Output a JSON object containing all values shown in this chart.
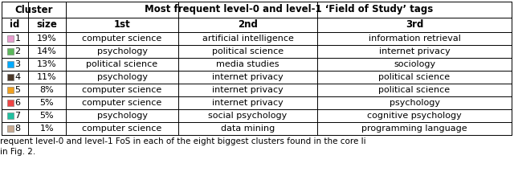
{
  "title_row1": "Most frequent level-0 and level-1 ‘Field of Study’ tags",
  "cluster_header": "Cluster",
  "rows": [
    {
      "id": "1",
      "size": "19%",
      "color": "#e89cce",
      "1st": "computer science",
      "2nd": "artificial intelligence",
      "3rd": "information retrieval"
    },
    {
      "id": "2",
      "size": "14%",
      "color": "#5cb85c",
      "1st": "psychology",
      "2nd": "political science",
      "3rd": "internet privacy"
    },
    {
      "id": "3",
      "size": "13%",
      "color": "#00aaff",
      "1st": "political science",
      "2nd": "media studies",
      "3rd": "sociology"
    },
    {
      "id": "4",
      "size": "11%",
      "color": "#4a3728",
      "1st": "psychology",
      "2nd": "internet privacy",
      "3rd": "political science"
    },
    {
      "id": "5",
      "size": "8%",
      "color": "#f0a020",
      "1st": "computer science",
      "2nd": "internet privacy",
      "3rd": "political science"
    },
    {
      "id": "6",
      "size": "5%",
      "color": "#ee4444",
      "1st": "computer science",
      "2nd": "internet privacy",
      "3rd": "psychology"
    },
    {
      "id": "7",
      "size": "5%",
      "color": "#20c0a0",
      "1st": "psychology",
      "2nd": "social psychology",
      "3rd": "cognitive psychology"
    },
    {
      "id": "8",
      "size": "1%",
      "color": "#c8aa90",
      "1st": "computer science",
      "2nd": "data mining",
      "3rd": "programming language"
    }
  ],
  "caption_line1": "requent level-0 and level-1 FoS in each of the eight biggest clusters found in the core li",
  "caption_line2": "in Fig. 2.",
  "bg_color": "#ffffff",
  "line_color": "#000000",
  "font_size": 8.0,
  "header_font_size": 8.5
}
